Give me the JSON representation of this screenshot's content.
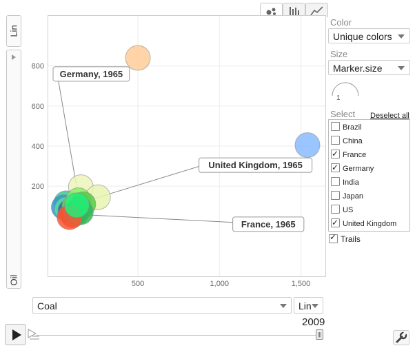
{
  "y_axis": {
    "scale": "Lin",
    "variable": "Oil"
  },
  "x_axis": {
    "variable": "Coal",
    "scale": "Lin"
  },
  "chart_tabs": [
    {
      "name": "bubble-chart-tab",
      "icon": "bubble-chart-icon",
      "active": true
    },
    {
      "name": "bar-chart-tab",
      "icon": "bar-chart-icon",
      "active": false
    },
    {
      "name": "line-chart-tab",
      "icon": "line-chart-icon",
      "active": false
    }
  ],
  "panel": {
    "color_label": "Color",
    "color_value": "Unique colors",
    "size_label": "Size",
    "size_value": "Marker.size",
    "size_legend_value": "1",
    "select_label": "Select",
    "deselect_all": "Deselect all",
    "countries": [
      {
        "label": "Brazil",
        "checked": false
      },
      {
        "label": "China",
        "checked": false
      },
      {
        "label": "France",
        "checked": true
      },
      {
        "label": "Germany",
        "checked": true
      },
      {
        "label": "India",
        "checked": false
      },
      {
        "label": "Japan",
        "checked": false
      },
      {
        "label": "US",
        "checked": false
      },
      {
        "label": "United Kingdom",
        "checked": true
      }
    ],
    "trails_label": "Trails",
    "trails_checked": true
  },
  "timeline": {
    "year": "2009",
    "play_icon": "play-icon",
    "settings_icon": "wrench-icon"
  },
  "chart_data": {
    "type": "scatter",
    "subtype": "bubble",
    "xlabel": "Coal",
    "ylabel": "Oil",
    "xlim": [
      -50,
      1650
    ],
    "ylim": [
      -250,
      1050
    ],
    "x_ticks": [
      500,
      1000,
      1500
    ],
    "x_tick_labels": [
      "500",
      "1,000",
      "1,500"
    ],
    "y_ticks": [
      200,
      400,
      600,
      800
    ],
    "y_tick_labels": [
      "200",
      "400",
      "600",
      "800"
    ],
    "grid": true,
    "year": "2009",
    "points": [
      {
        "x": 500,
        "y": 840,
        "color": "#ffcc99"
      },
      {
        "x": 1540,
        "y": 405,
        "color": "#88bbff"
      },
      {
        "x": 150,
        "y": 195,
        "color": "#eef5bb"
      },
      {
        "x": 255,
        "y": 145,
        "color": "#e6f5b0"
      },
      {
        "x": 60,
        "y": 115,
        "color": "#33cc99"
      },
      {
        "x": 45,
        "y": 95,
        "color": "#3399cc"
      },
      {
        "x": 65,
        "y": 85,
        "color": "#55ddaa"
      },
      {
        "x": 85,
        "y": 75,
        "color": "#226699"
      },
      {
        "x": 110,
        "y": 100,
        "color": "#66dd55"
      },
      {
        "x": 135,
        "y": 130,
        "color": "#88ee66"
      },
      {
        "x": 165,
        "y": 110,
        "color": "#55cc44"
      },
      {
        "x": 140,
        "y": 85,
        "color": "#44bb77"
      },
      {
        "x": 100,
        "y": 55,
        "color": "#cc4422"
      },
      {
        "x": 120,
        "y": 65,
        "color": "#22aa66"
      },
      {
        "x": 150,
        "y": 70,
        "color": "#33bb55"
      },
      {
        "x": 80,
        "y": 45,
        "color": "#ff5533"
      },
      {
        "x": 125,
        "y": 105,
        "color": "#22ee77"
      }
    ],
    "annotations": [
      {
        "text": "Germany, 1965",
        "x": 140,
        "y": 120,
        "anchor_x": 5,
        "anchor_y": 760
      },
      {
        "text": "United Kingdom, 1965",
        "x": 140,
        "y": 115,
        "anchor_x": 900,
        "anchor_y": 305
      },
      {
        "text": "France, 1965",
        "x": 110,
        "y": 60,
        "anchor_x": 1300,
        "anchor_y": 10
      }
    ]
  }
}
